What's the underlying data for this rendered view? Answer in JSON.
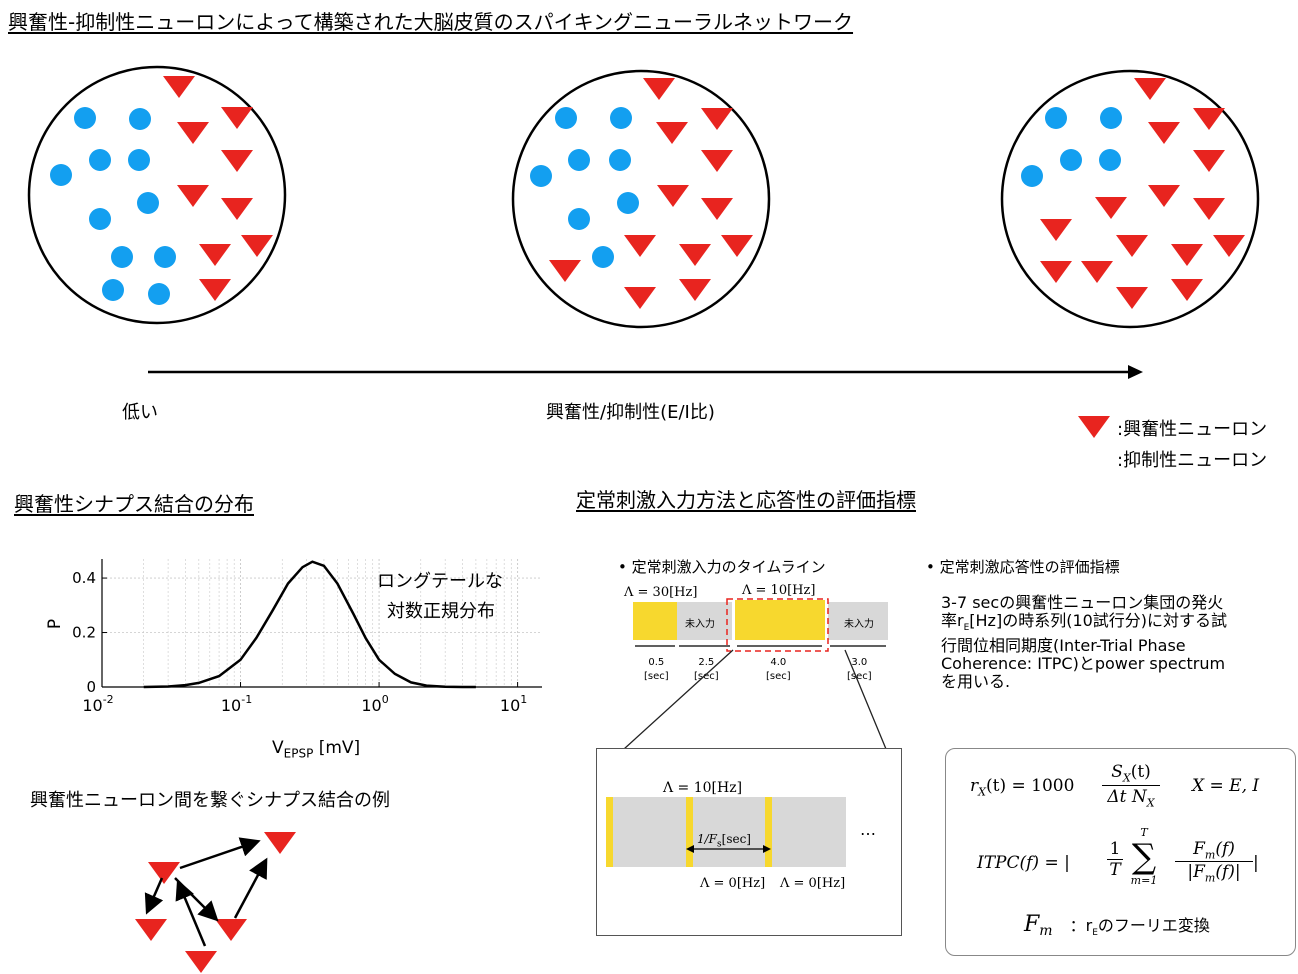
{
  "title": "興奮性-抑制性ニューロンによって構築された大脳皮質のスパイキングニューラルネットワーク",
  "network": {
    "axis_low": "低い",
    "axis_label": "興奮性/抑制性(E/I比)",
    "legend_excitatory": ":興奮性ニューロン",
    "legend_inhibitory": ":抑制性ニューロン",
    "colors": {
      "excitatory": "#e8241f",
      "inhibitory": "#139ff0"
    }
  },
  "synapse": {
    "heading": "興奮性シナプス結合の分布",
    "annotation_line1": "ロングテールな",
    "annotation_line2": "対数正規分布",
    "example_label": "興奮性ニューロン間を繋ぐシナプス結合の例"
  },
  "chart_data": {
    "type": "line",
    "title": "",
    "xlabel": "V",
    "xlabel_sub": "EPSP",
    "xlabel_unit": " [mV]",
    "ylabel": "P",
    "x_scale": "log",
    "xlim": [
      0.01,
      15
    ],
    "ylim": [
      0,
      0.47
    ],
    "x_ticks": [
      {
        "value": 0.01,
        "base": "10",
        "exp": "-2"
      },
      {
        "value": 0.1,
        "base": "10",
        "exp": "-1"
      },
      {
        "value": 1,
        "base": "10",
        "exp": "0"
      },
      {
        "value": 10,
        "base": "10",
        "exp": "1"
      }
    ],
    "y_ticks": [
      {
        "value": 0,
        "label": "0"
      },
      {
        "value": 0.2,
        "label": "0.2"
      },
      {
        "value": 0.4,
        "label": "0.4"
      }
    ],
    "grid": true,
    "series": [
      {
        "x": [
          0.02,
          0.03,
          0.04,
          0.05,
          0.07,
          0.1,
          0.13,
          0.17,
          0.22,
          0.28,
          0.33,
          0.4,
          0.5,
          0.65,
          0.8,
          1.0,
          1.3,
          1.7,
          2.2,
          3.0,
          4.0,
          5.0
        ],
        "y": [
          0.0,
          0.002,
          0.007,
          0.015,
          0.04,
          0.1,
          0.18,
          0.28,
          0.38,
          0.44,
          0.46,
          0.445,
          0.38,
          0.27,
          0.18,
          0.1,
          0.048,
          0.017,
          0.005,
          0.001,
          0.0,
          0.0
        ]
      }
    ]
  },
  "stimulus": {
    "heading": "定常刺激入力方法と応答性の評価指標",
    "timeline_bullet": "•  定常刺激入力のタイムライン",
    "eval_bullet": "•  定常刺激応答性の評価指標",
    "lambda30": "Λ = 30[Hz]",
    "lambda10": "Λ = 10[Hz]",
    "no_input": "未入力",
    "durations": [
      {
        "value": "0.5",
        "unit": "[sec]"
      },
      {
        "value": "2.5",
        "unit": "[sec]"
      },
      {
        "value": "4.0",
        "unit": "[sec]"
      },
      {
        "value": "3.0",
        "unit": "[sec]"
      }
    ],
    "eval_text": [
      "3-7 secの興奮性ニューロン集団の発火",
      "率r",
      "E",
      "[Hz]の時系列(10試行分)に対する試",
      "行間位相同期度(Inter-Trial Phase",
      "Coherence: ITPC)とpower spectrum",
      "を用いる."
    ],
    "zoom": {
      "lambda10": "Λ = 10[Hz]",
      "interval": "1/F",
      "interval_sub": "s",
      "interval_unit": "[sec]",
      "lambda0_a": "Λ = 0[Hz]",
      "lambda0_b": "Λ = 0[Hz]",
      "ellipsis": "…"
    },
    "colors": {
      "yellow": "#f7d82e",
      "gray": "#d8d8d8",
      "dash": "#e8241f"
    }
  },
  "equations": {
    "eq1_lhs": "r",
    "eq1_lhs_sub": "X",
    "eq1_lhs_arg": "(t) = 1000",
    "eq1_num": "S",
    "eq1_num_sub": "X",
    "eq1_num_arg": "(t)",
    "eq1_den": "Δt N",
    "eq1_den_sub": "X",
    "eq1_cond": "X = E, I",
    "eq2_lhs": "ITPC(f) = |",
    "eq2_frac_num": "1",
    "eq2_frac_den": "T",
    "eq2_sum_top": "T",
    "eq2_sum_sym": "∑",
    "eq2_sum_bot": "m=1",
    "eq2_num": "F",
    "eq2_num_sub": "m",
    "eq2_num_arg": "(f)",
    "eq2_den": "|F",
    "eq2_den_sub": "m",
    "eq2_den_arg": "(f)|",
    "eq2_end": "|",
    "fm_sym": "F",
    "fm_sub": "m",
    "fm_desc_pre": "：r",
    "fm_desc_sub": "E",
    "fm_desc_post": "のフーリエ変換"
  }
}
